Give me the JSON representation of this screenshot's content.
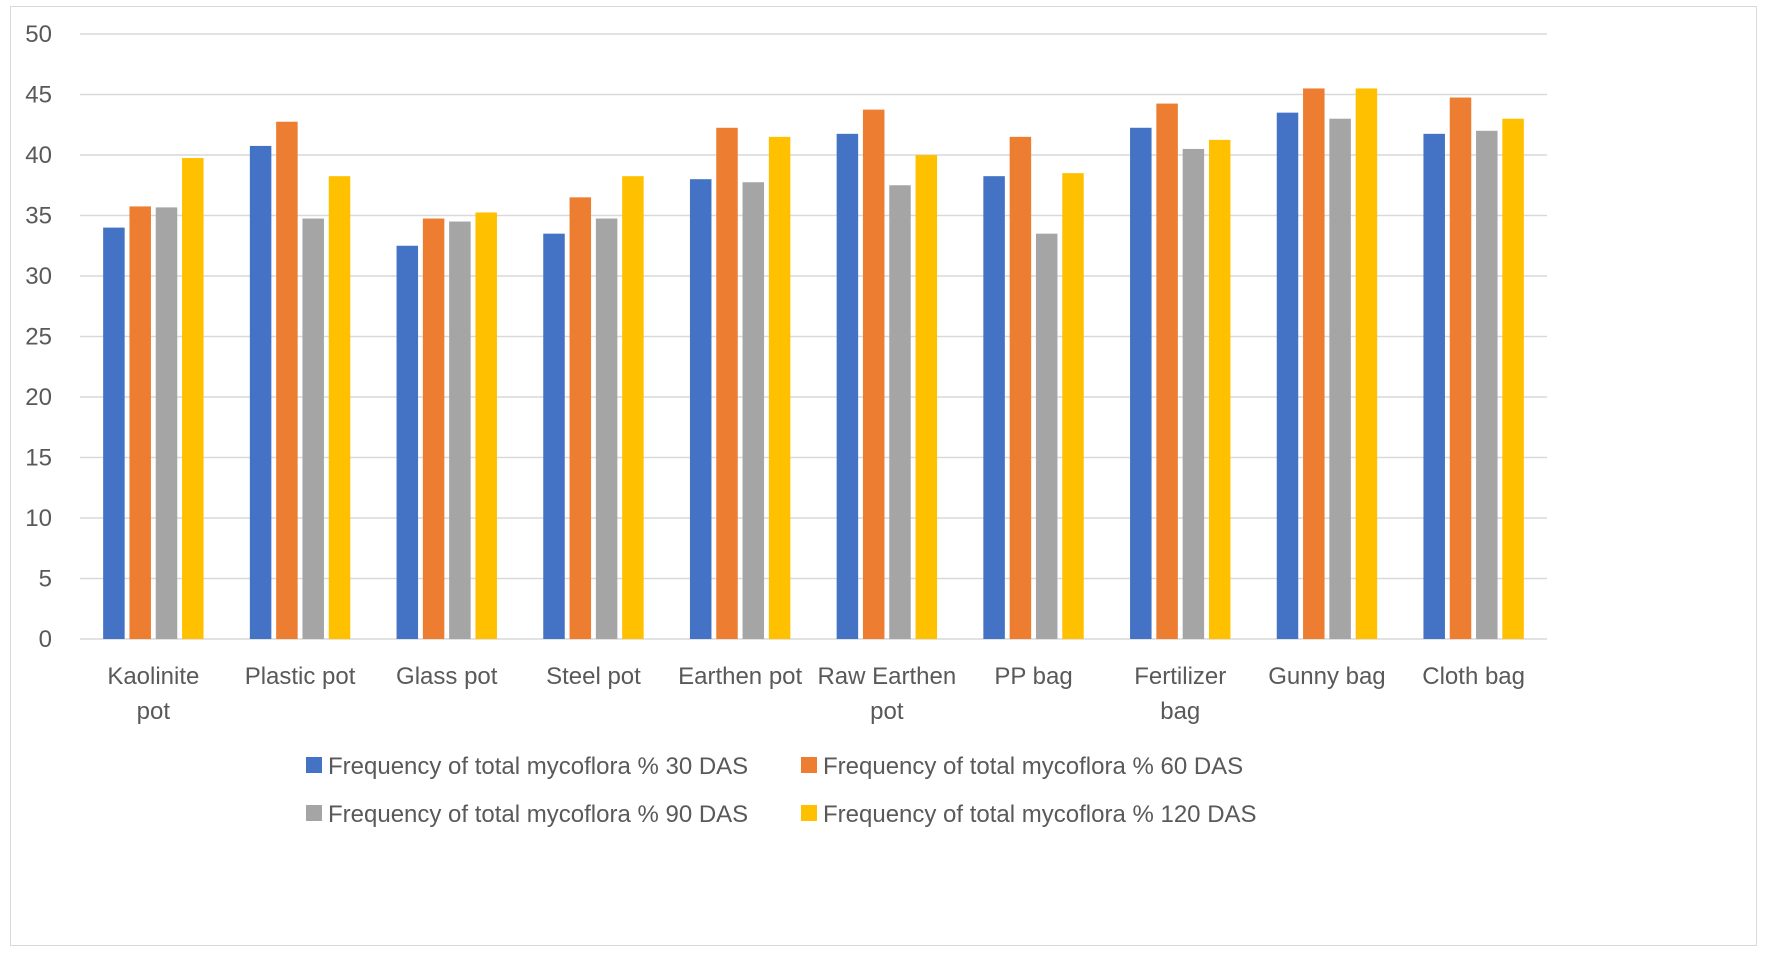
{
  "chart_data": {
    "type": "bar",
    "categories": [
      [
        "Kaolinite",
        "pot"
      ],
      [
        "Plastic pot"
      ],
      [
        "Glass pot"
      ],
      [
        "Steel pot"
      ],
      [
        "Earthen pot"
      ],
      [
        "Raw Earthen",
        "pot"
      ],
      [
        "PP bag"
      ],
      [
        "Fertilizer",
        "bag"
      ],
      [
        "Gunny bag"
      ],
      [
        "Cloth bag"
      ]
    ],
    "series": [
      {
        "name": "Frequency of total mycoflora % 30 DAS",
        "color": "#4472c4",
        "values": [
          34,
          40.75,
          32.5,
          33.5,
          38,
          41.75,
          38.25,
          42.25,
          43.5,
          41.75
        ]
      },
      {
        "name": "Frequency of total mycoflora % 60 DAS",
        "color": "#ed7d31",
        "values": [
          35.75,
          42.75,
          34.75,
          36.5,
          42.25,
          43.75,
          41.5,
          44.25,
          45.5,
          44.75
        ]
      },
      {
        "name": "Frequency of total mycoflora % 90 DAS",
        "color": "#a5a5a5",
        "values": [
          35.67,
          34.75,
          34.5,
          34.75,
          37.75,
          37.5,
          33.5,
          40.5,
          43,
          42
        ]
      },
      {
        "name": "Frequency of total mycoflora % 120 DAS",
        "color": "#ffc000",
        "values": [
          39.75,
          38.25,
          35.25,
          38.25,
          41.5,
          40,
          38.5,
          41.25,
          45.5,
          43
        ]
      }
    ],
    "yticks": [
      "0",
      "5",
      "10",
      "15",
      "20",
      "25",
      "30",
      "35",
      "40",
      "45",
      "50"
    ],
    "ylim": [
      0,
      50
    ],
    "grid": true,
    "legend_position": "bottom",
    "gridline_color": "#d9d9d9"
  }
}
